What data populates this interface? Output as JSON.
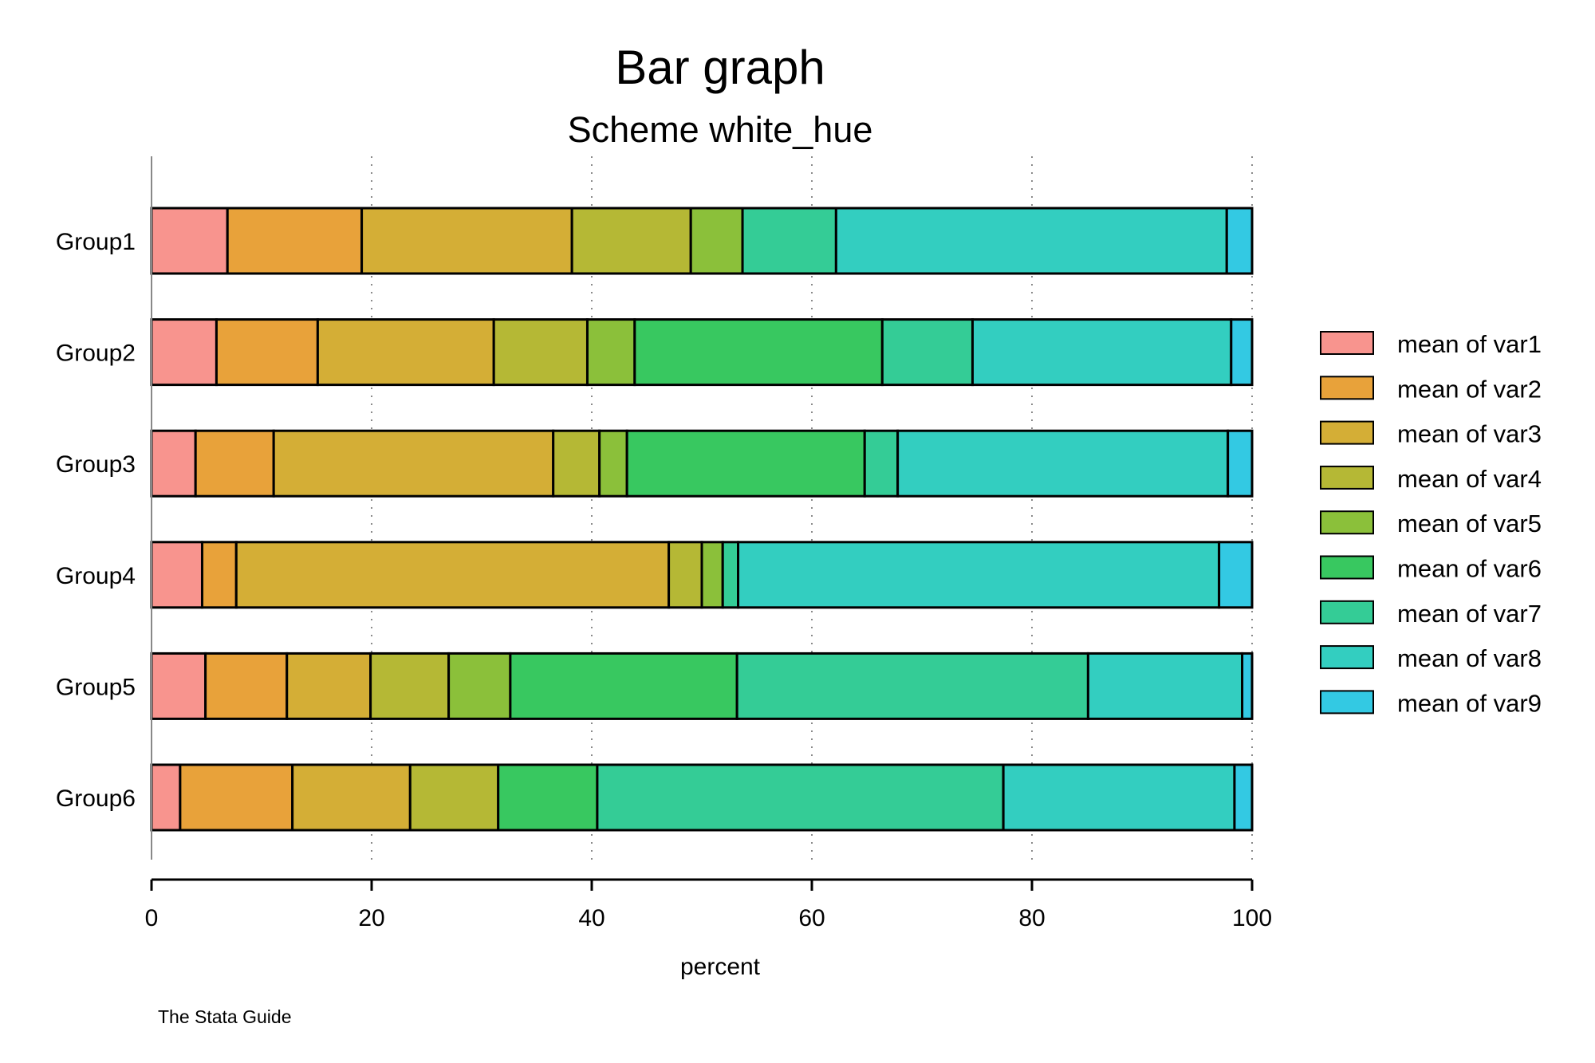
{
  "chart_data": {
    "type": "bar",
    "orientation": "horizontal",
    "stacked": true,
    "title": "Bar graph",
    "subtitle": "Scheme white_hue",
    "xlabel": "percent",
    "ylabel": "",
    "xlim": [
      0,
      100
    ],
    "xticks": [
      "0",
      "20",
      "40",
      "60",
      "80",
      "100"
    ],
    "grid": true,
    "legend_position": "right",
    "note": "The Stata Guide",
    "categories": [
      "Group1",
      "Group2",
      "Group3",
      "Group4",
      "Group5",
      "Group6"
    ],
    "series": [
      {
        "name": "mean of var1",
        "color": "#F8948E",
        "values": [
          6.9,
          5.9,
          4.0,
          4.6,
          4.9,
          2.6
        ]
      },
      {
        "name": "mean of var2",
        "color": "#E8A23A",
        "values": [
          12.2,
          9.2,
          7.1,
          3.1,
          7.4,
          10.2
        ]
      },
      {
        "name": "mean of var3",
        "color": "#D4AE36",
        "values": [
          19.1,
          16.0,
          25.4,
          39.3,
          7.6,
          10.7
        ]
      },
      {
        "name": "mean of var4",
        "color": "#B5B835",
        "values": [
          10.8,
          8.5,
          4.2,
          3.0,
          7.1,
          8.0
        ]
      },
      {
        "name": "mean of var5",
        "color": "#8BC03A",
        "values": [
          4.7,
          4.3,
          2.5,
          1.9,
          5.6,
          0.0
        ]
      },
      {
        "name": "mean of var6",
        "color": "#38C860",
        "values": [
          0.0,
          22.5,
          21.6,
          0.0,
          20.6,
          9.0
        ]
      },
      {
        "name": "mean of var7",
        "color": "#34CC96",
        "values": [
          8.5,
          8.2,
          3.0,
          1.4,
          31.9,
          36.9
        ]
      },
      {
        "name": "mean of var8",
        "color": "#33CEC0",
        "values": [
          35.5,
          23.5,
          30.0,
          43.7,
          14.0,
          21.0
        ]
      },
      {
        "name": "mean of var9",
        "color": "#33C9E3",
        "values": [
          2.3,
          1.9,
          2.2,
          3.0,
          0.9,
          1.6
        ]
      }
    ]
  }
}
